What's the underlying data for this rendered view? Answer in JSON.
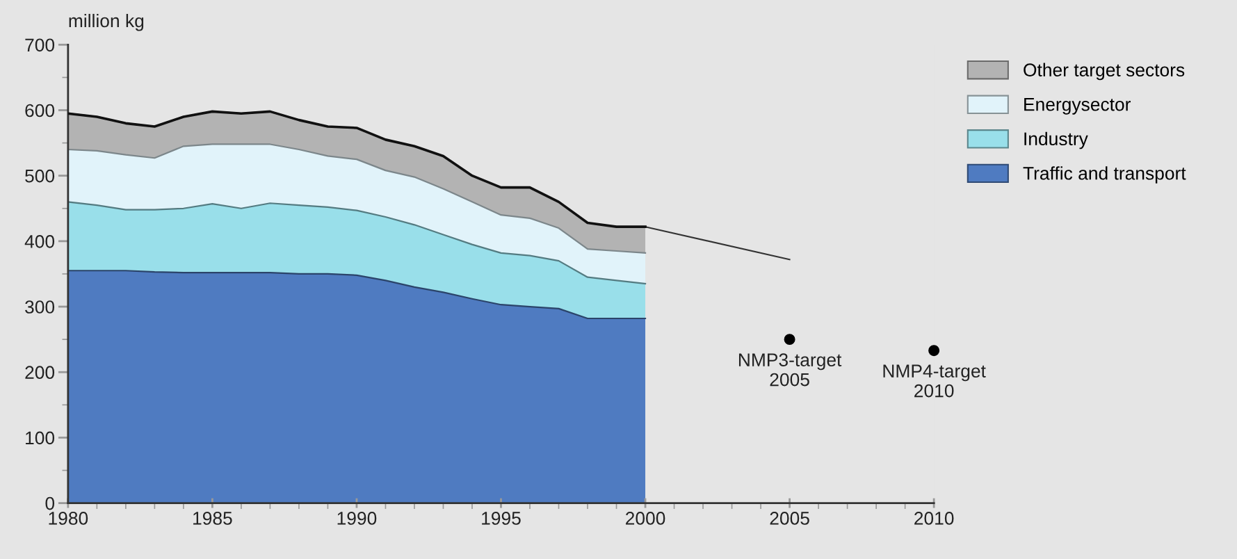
{
  "chart_data": {
    "type": "area",
    "stacked": true,
    "ylabel": "million kg",
    "x": [
      1980,
      1981,
      1982,
      1983,
      1984,
      1985,
      1986,
      1987,
      1988,
      1989,
      1990,
      1991,
      1992,
      1993,
      1994,
      1995,
      1996,
      1997,
      1998,
      1999,
      2000
    ],
    "series": [
      {
        "name": "Traffic and transport",
        "color": "#4f7bc1",
        "values": [
          355,
          355,
          355,
          353,
          352,
          352,
          352,
          352,
          350,
          350,
          348,
          340,
          330,
          322,
          312,
          303,
          300,
          297,
          282,
          282,
          282
        ]
      },
      {
        "name": "Industry",
        "color": "#99dfea",
        "values": [
          105,
          100,
          93,
          95,
          98,
          105,
          98,
          106,
          105,
          102,
          99,
          97,
          95,
          88,
          83,
          79,
          78,
          73,
          63,
          58,
          53
        ]
      },
      {
        "name": "Energysector",
        "color": "#e1f3fa",
        "values": [
          80,
          83,
          84,
          79,
          95,
          91,
          98,
          90,
          85,
          78,
          78,
          71,
          73,
          70,
          65,
          58,
          57,
          50,
          43,
          45,
          47
        ]
      },
      {
        "name": "Other target sectors",
        "color": "#b3b3b3",
        "values": [
          55,
          52,
          48,
          48,
          45,
          50,
          47,
          50,
          45,
          45,
          48,
          47,
          47,
          50,
          40,
          42,
          47,
          40,
          40,
          37,
          40
        ]
      },
      {
        "type": "line",
        "color": "#333333",
        "x": [
          2000,
          2005
        ],
        "values": [
          422,
          372
        ]
      },
      {
        "type": "scatter",
        "color": "#000000",
        "marker": "circle",
        "x": [
          2005,
          2010
        ],
        "values": [
          250,
          233
        ]
      }
    ],
    "annotations": [
      {
        "text": "NMP3-target\n2005",
        "x": 2005,
        "y": 250
      },
      {
        "text": "NMP4-target\n2010",
        "x": 2010,
        "y": 233
      }
    ],
    "xlim": [
      1980,
      2010
    ],
    "xticks": [
      1980,
      1985,
      1990,
      1995,
      2000,
      2005,
      2010
    ],
    "ylim": [
      0,
      700
    ],
    "yticks": [
      0,
      100,
      200,
      300,
      400,
      500,
      600,
      700
    ],
    "grid": false,
    "legend": "top right"
  }
}
